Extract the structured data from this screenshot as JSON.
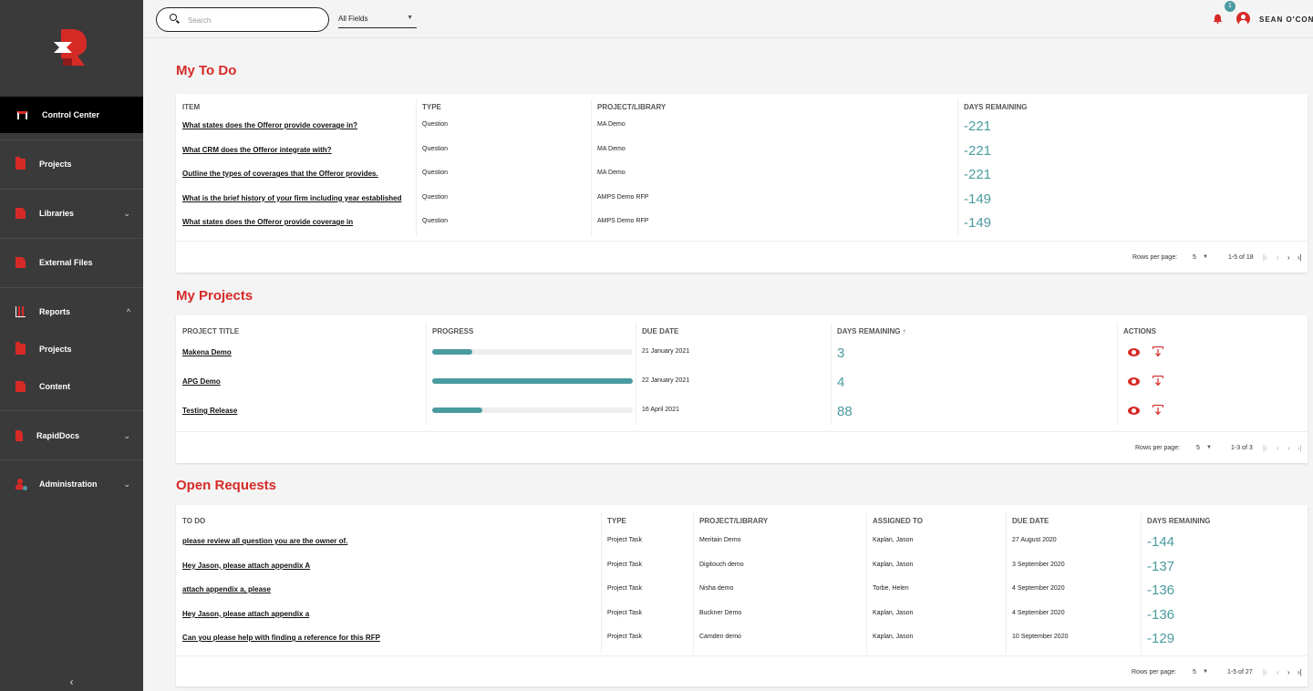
{
  "sidebar": {
    "items": [
      {
        "label": "Control Center",
        "icon": "control-center-icon",
        "active": true
      },
      {
        "label": "Projects",
        "icon": "folder-icon"
      },
      {
        "label": "Libraries",
        "icon": "library-icon",
        "chevron": "⌄"
      },
      {
        "label": "External Files",
        "icon": "file-icon"
      },
      {
        "label": "Reports",
        "icon": "chart-icon",
        "chevron": "^"
      },
      {
        "label": "Projects",
        "icon": "folder-icon"
      },
      {
        "label": "Content",
        "icon": "file-icon"
      },
      {
        "label": "RapidDocs",
        "icon": "rapiddocs-icon",
        "chevron": "⌄"
      },
      {
        "label": "Administration",
        "icon": "admin-user-icon",
        "chevron": "⌄"
      }
    ],
    "collapse_glyph": "‹"
  },
  "topbar": {
    "search_placeholder": "Search",
    "field_select": "All Fields",
    "notification_count": "1",
    "user_name": "SEAN O'CONN"
  },
  "todo": {
    "title": "My To Do",
    "headers": [
      "ITEM",
      "TYPE",
      "PROJECT/LIBRARY",
      "DAYS REMAINING"
    ],
    "rows": [
      {
        "item": "What states does the Offeror provide coverage in?",
        "type": "Question",
        "project": "MA Demo",
        "days": "-221"
      },
      {
        "item": "What CRM does the Offeror integrate with?",
        "type": "Question",
        "project": "MA Demo",
        "days": "-221"
      },
      {
        "item": "Outline the types of coverages that the Offeror provides.",
        "type": "Question",
        "project": "MA Demo",
        "days": "-221"
      },
      {
        "item": "What is the brief history of your firm including year established",
        "type": "Question",
        "project": "AMPS Demo RFP",
        "days": "-149"
      },
      {
        "item": "What states does the Offeror provide coverage in",
        "type": "Question",
        "project": "AMPS Demo RFP",
        "days": "-149"
      }
    ],
    "footer": {
      "rows_per_page_label": "Rows per page:",
      "rows_per_page": "5",
      "range": "1-5 of 18"
    }
  },
  "projects": {
    "title": "My Projects",
    "headers": [
      "PROJECT TITLE",
      "PROGRESS",
      "DUE DATE",
      "DAYS REMAINING",
      "ACTIONS"
    ],
    "sort_glyph": "↑",
    "rows": [
      {
        "title": "Makena Demo",
        "progress": 0.2,
        "due": "21 January 2021",
        "days": "3"
      },
      {
        "title": "APG Demo",
        "progress": 1.0,
        "due": "22 January 2021",
        "days": "4"
      },
      {
        "title": "Testing Release",
        "progress": 0.25,
        "due": "16 April 2021",
        "days": "88"
      }
    ],
    "footer": {
      "rows_per_page_label": "Rows per page:",
      "rows_per_page": "5",
      "range": "1-3 of 3"
    }
  },
  "requests": {
    "title": "Open Requests",
    "headers": [
      "TO DO",
      "TYPE",
      "PROJECT/LIBRARY",
      "ASSIGNED TO",
      "DUE DATE",
      "DAYS REMAINING"
    ],
    "rows": [
      {
        "todo": "please review all question you are the owner of.",
        "type": "Project Task",
        "project": "Meritain Demo",
        "assigned": "Kaplan, Jason",
        "due": "27 August 2020",
        "days": "-144"
      },
      {
        "todo": "Hey Jason, please attach appendix A",
        "type": "Project Task",
        "project": "Digitouch demo",
        "assigned": "Kaplan, Jason",
        "due": "3 September 2020",
        "days": "-137"
      },
      {
        "todo": "attach appendix a, please",
        "type": "Project Task",
        "project": "Nisha demo",
        "assigned": "Torbe, Helen",
        "due": "4 September 2020",
        "days": "-136"
      },
      {
        "todo": "Hey Jason, please attach appendix a",
        "type": "Project Task",
        "project": "Buckner Demo",
        "assigned": "Kaplan, Jason",
        "due": "4 September 2020",
        "days": "-136"
      },
      {
        "todo": "Can you please help with finding a reference for this RFP",
        "type": "Project Task",
        "project": "Camden demo",
        "assigned": "Kaplan, Jason",
        "due": "10 September 2020",
        "days": "-129"
      }
    ],
    "footer": {
      "rows_per_page_label": "Rows per page:",
      "rows_per_page": "5",
      "range": "1-5 of 27"
    }
  },
  "pager_glyphs": {
    "first": "|‹",
    "prev": "‹",
    "next": "›",
    "last": "›|"
  },
  "caret_glyph": "▼",
  "colors": {
    "accent": "#d62a27",
    "teal": "#4a9ba0",
    "sidebar": "#3a3a3a"
  }
}
